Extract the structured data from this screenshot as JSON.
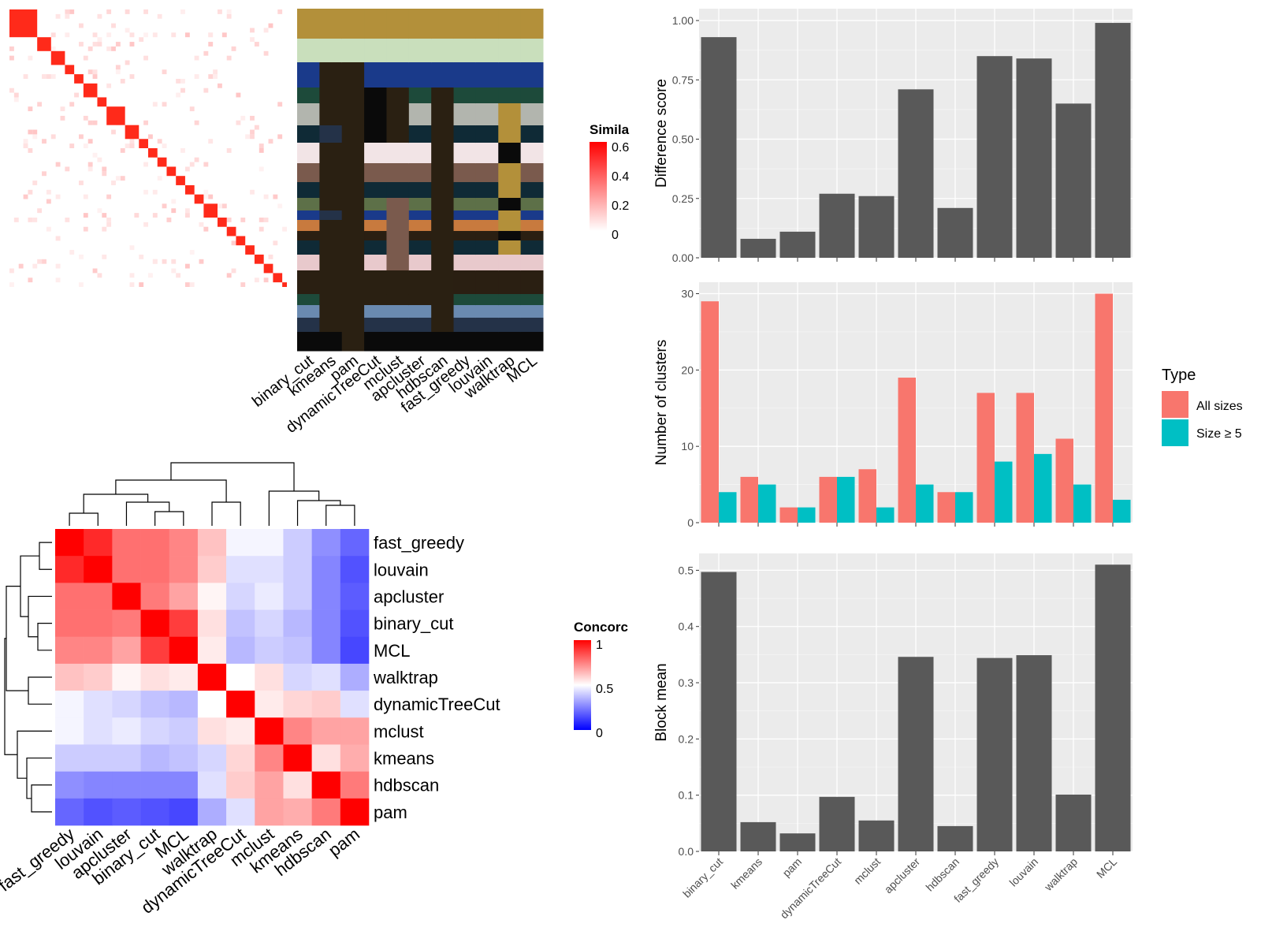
{
  "methods": [
    "binary_cut",
    "kmeans",
    "pam",
    "dynamicTreeCut",
    "mclust",
    "apcluster",
    "hdbscan",
    "fast_greedy",
    "louvain",
    "walktrap",
    "MCL"
  ],
  "similarity_legend": {
    "title": "Simila",
    "ticks": [
      "0.6",
      "0.4",
      "0.2",
      "0"
    ]
  },
  "concordance_legend": {
    "title": "Concorc",
    "ticks": [
      "1",
      "0.5",
      "0"
    ]
  },
  "type_legend": {
    "title": "Type",
    "items": [
      "All sizes",
      "Size ≥ 5"
    ],
    "colors": [
      "#F8766D",
      "#00BFC4"
    ]
  },
  "colors": {
    "bar": "#595959",
    "panel": "#ebebeb",
    "similarity_high": "#ff0000",
    "concordance_high": "#ff0000",
    "concordance_low": "#0000ff"
  },
  "chart_data": [
    {
      "type": "heatmap",
      "title": "",
      "note": "term similarity matrix, red diagonal blocks",
      "legend": "Similarity",
      "range": [
        0,
        0.6
      ]
    },
    {
      "type": "heatmap",
      "title": "",
      "note": "cluster assignment colors per method",
      "columns": [
        "binary_cut",
        "kmeans",
        "pam",
        "dynamicTreeCut",
        "mclust",
        "apcluster",
        "hdbscan",
        "fast_greedy",
        "louvain",
        "walktrap",
        "MCL"
      ]
    },
    {
      "type": "heatmap",
      "title": "",
      "rows": [
        "fast_greedy",
        "louvain",
        "apcluster",
        "binary_cut",
        "MCL",
        "walktrap",
        "dynamicTreeCut",
        "mclust",
        "kmeans",
        "hdbscan",
        "pam"
      ],
      "columns": [
        "fast_greedy",
        "louvain",
        "apcluster",
        "binary_cut",
        "MCL",
        "walktrap",
        "dynamicTreeCut",
        "mclust",
        "kmeans",
        "hdbscan",
        "pam"
      ],
      "values": [
        [
          1.0,
          0.92,
          0.78,
          0.78,
          0.74,
          0.62,
          0.48,
          0.48,
          0.4,
          0.28,
          0.2
        ],
        [
          0.92,
          1.0,
          0.78,
          0.78,
          0.74,
          0.6,
          0.44,
          0.44,
          0.4,
          0.26,
          0.16
        ],
        [
          0.78,
          0.78,
          1.0,
          0.76,
          0.68,
          0.52,
          0.42,
          0.46,
          0.4,
          0.26,
          0.18
        ],
        [
          0.78,
          0.78,
          0.76,
          1.0,
          0.88,
          0.56,
          0.38,
          0.42,
          0.36,
          0.26,
          0.16
        ],
        [
          0.74,
          0.74,
          0.68,
          0.88,
          1.0,
          0.54,
          0.36,
          0.4,
          0.38,
          0.26,
          0.14
        ],
        [
          0.62,
          0.6,
          0.52,
          0.56,
          0.54,
          1.0,
          0.5,
          0.56,
          0.42,
          0.44,
          0.34
        ],
        [
          0.48,
          0.44,
          0.42,
          0.38,
          0.36,
          0.5,
          1.0,
          0.54,
          0.58,
          0.6,
          0.44
        ],
        [
          0.48,
          0.44,
          0.46,
          0.42,
          0.4,
          0.56,
          0.54,
          1.0,
          0.74,
          0.68,
          0.68
        ],
        [
          0.4,
          0.4,
          0.4,
          0.36,
          0.38,
          0.42,
          0.58,
          0.74,
          1.0,
          0.56,
          0.66
        ],
        [
          0.28,
          0.26,
          0.26,
          0.26,
          0.26,
          0.44,
          0.6,
          0.68,
          0.56,
          1.0,
          0.76
        ],
        [
          0.2,
          0.16,
          0.18,
          0.16,
          0.14,
          0.34,
          0.44,
          0.68,
          0.66,
          0.76,
          1.0
        ]
      ],
      "legend": "Concordance",
      "range": [
        0,
        1
      ]
    },
    {
      "type": "bar",
      "categories": [
        "binary_cut",
        "kmeans",
        "pam",
        "dynamicTreeCut",
        "mclust",
        "apcluster",
        "hdbscan",
        "fast_greedy",
        "louvain",
        "walktrap",
        "MCL"
      ],
      "values": [
        0.93,
        0.08,
        0.11,
        0.27,
        0.26,
        0.71,
        0.21,
        0.85,
        0.84,
        0.65,
        0.99
      ],
      "title": "",
      "xlabel": "",
      "ylabel": "Difference score",
      "ylim": [
        0,
        1.05
      ],
      "yticks": [
        "0.00",
        "0.25",
        "0.50",
        "0.75",
        "1.00"
      ]
    },
    {
      "type": "bar",
      "categories": [
        "binary_cut",
        "kmeans",
        "pam",
        "dynamicTreeCut",
        "mclust",
        "apcluster",
        "hdbscan",
        "fast_greedy",
        "louvain",
        "walktrap",
        "MCL"
      ],
      "series": [
        {
          "name": "All sizes",
          "values": [
            29,
            6,
            2,
            6,
            7,
            19,
            4,
            17,
            17,
            11,
            30
          ]
        },
        {
          "name": "Size ≥ 5",
          "values": [
            4,
            5,
            2,
            6,
            2,
            5,
            4,
            8,
            9,
            5,
            3
          ]
        }
      ],
      "title": "",
      "xlabel": "",
      "ylabel": "Number of clusters",
      "ylim": [
        0,
        31.5
      ],
      "yticks": [
        "0",
        "10",
        "20",
        "30"
      ]
    },
    {
      "type": "bar",
      "categories": [
        "binary_cut",
        "kmeans",
        "pam",
        "dynamicTreeCut",
        "mclust",
        "apcluster",
        "hdbscan",
        "fast_greedy",
        "louvain",
        "walktrap",
        "MCL"
      ],
      "values": [
        0.497,
        0.052,
        0.032,
        0.097,
        0.055,
        0.346,
        0.045,
        0.344,
        0.349,
        0.101,
        0.51
      ],
      "title": "",
      "xlabel": "",
      "ylabel": "Block mean",
      "ylim": [
        0,
        0.53
      ],
      "yticks": [
        "0.0",
        "0.1",
        "0.2",
        "0.3",
        "0.4",
        "0.5"
      ]
    }
  ]
}
